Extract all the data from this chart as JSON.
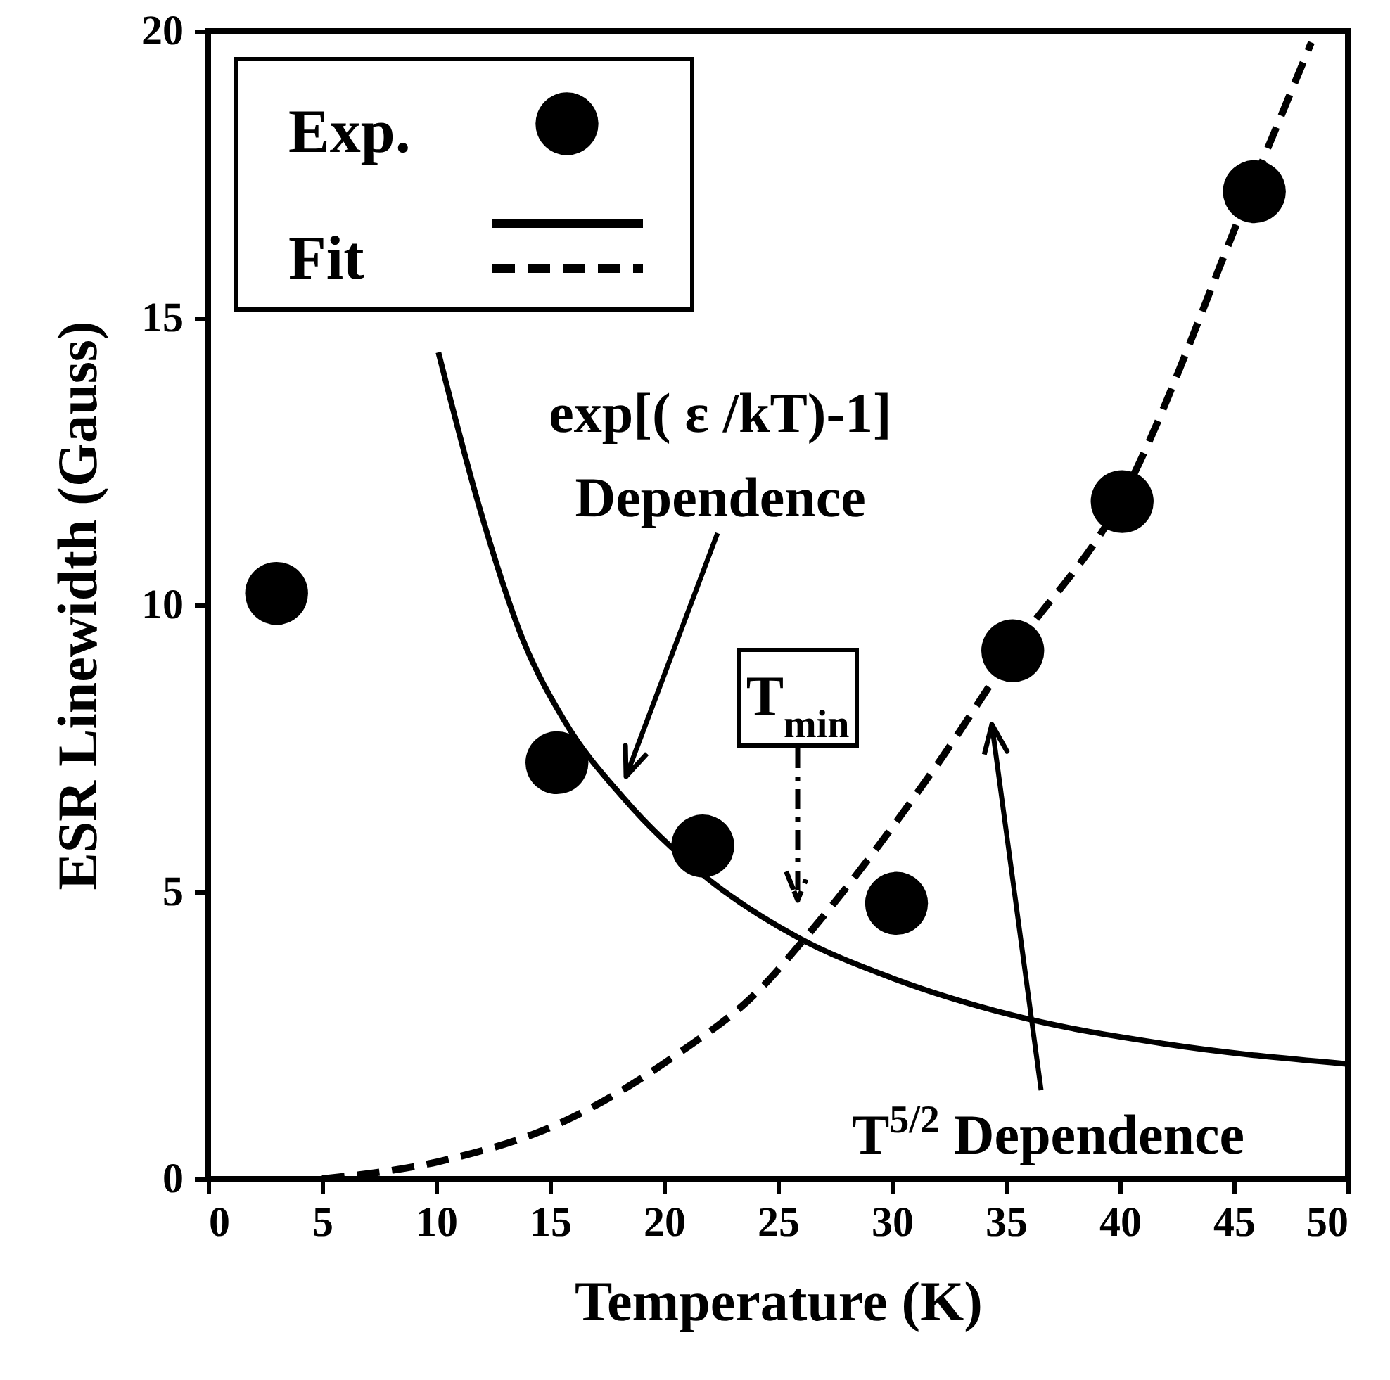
{
  "chart_data": {
    "type": "scatter",
    "xlabel": "Temperature (K)",
    "ylabel": "ESR Linewidth (Gauss)",
    "xlim": [
      0,
      50
    ],
    "ylim": [
      0,
      20
    ],
    "xticks": [
      0,
      5,
      10,
      15,
      20,
      25,
      30,
      35,
      40,
      45,
      50
    ],
    "yticks": [
      0,
      5,
      10,
      15,
      20
    ],
    "grid": false,
    "legend": "top left",
    "series": [
      {
        "name": "Fit",
        "type": "line",
        "line_style": "solid",
        "color": "#000000",
        "x": [
          10.1,
          11.9,
          13.8,
          15.6,
          18.3,
          21.7,
          25.9,
          30,
          35.3,
          42,
          50
        ],
        "values": [
          14.4,
          11.7,
          9.4,
          8.0,
          6.6,
          5.3,
          4.2,
          3.5,
          2.85,
          2.35,
          2.0
        ]
      },
      {
        "type": "line",
        "line_style": "dashed",
        "color": "#000000",
        "x": [
          5,
          10.1,
          15.6,
          20.5,
          24.2,
          26.2,
          32.3,
          35.3,
          40,
          45.7,
          48.4
        ],
        "values": [
          0,
          0.3,
          1.0,
          2.15,
          3.3,
          4.2,
          7.4,
          9.2,
          11.8,
          17.2,
          19.8
        ]
      },
      {
        "name": "Exp.",
        "marker": "circle",
        "color": "#000000",
        "x": [
          3,
          15.3,
          21.7,
          30.2,
          35.3,
          40.1,
          45.9
        ],
        "values": [
          10.2,
          7.25,
          5.8,
          4.8,
          9.2,
          11.8,
          17.2
        ]
      }
    ],
    "annotations": [
      "exp[( ε /kT)-1]\nDependence",
      "T$_{min}$",
      "T$^{5/2}$ Dependence"
    ]
  }
}
